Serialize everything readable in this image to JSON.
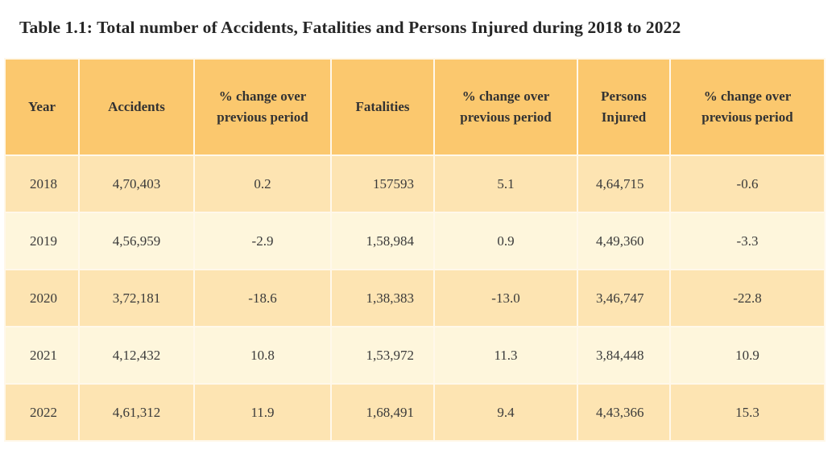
{
  "caption": "Table 1.1:  Total number of Accidents, Fatalities and Persons Injured during 2018 to 2022",
  "headers": {
    "year": "Year",
    "accidents": "Accidents",
    "acc_change": [
      "% change over",
      "previous period"
    ],
    "fatalities": "Fatalities",
    "fat_change": [
      "% change over",
      "previous period"
    ],
    "injured": [
      "Persons",
      "Injured"
    ],
    "inj_change": [
      "% change over",
      "previous period"
    ]
  },
  "rows": [
    {
      "year": "2018",
      "accidents": "4,70,403",
      "acc_change": "0.2",
      "fatalities": "157593",
      "fat_change": "5.1",
      "injured": "4,64,715",
      "inj_change": "-0.6"
    },
    {
      "year": "2019",
      "accidents": "4,56,959",
      "acc_change": "-2.9",
      "fatalities": "1,58,984",
      "fat_change": "0.9",
      "injured": "4,49,360",
      "inj_change": "-3.3"
    },
    {
      "year": "2020",
      "accidents": "3,72,181",
      "acc_change": "-18.6",
      "fatalities": "1,38,383",
      "fat_change": "-13.0",
      "injured": "3,46,747",
      "inj_change": "-22.8"
    },
    {
      "year": "2021",
      "accidents": "4,12,432",
      "acc_change": "10.8",
      "fatalities": "1,53,972",
      "fat_change": "11.3",
      "injured": "3,84,448",
      "inj_change": "10.9"
    },
    {
      "year": "2022",
      "accidents": "4,61,312",
      "acc_change": "11.9",
      "fatalities": "1,68,491",
      "fat_change": "9.4",
      "injured": "4,43,366",
      "inj_change": "15.3"
    }
  ],
  "colors": {
    "header_bg": "#fbc86e",
    "row_odd_bg": "#fde4b2",
    "row_even_bg": "#fef6dc"
  }
}
